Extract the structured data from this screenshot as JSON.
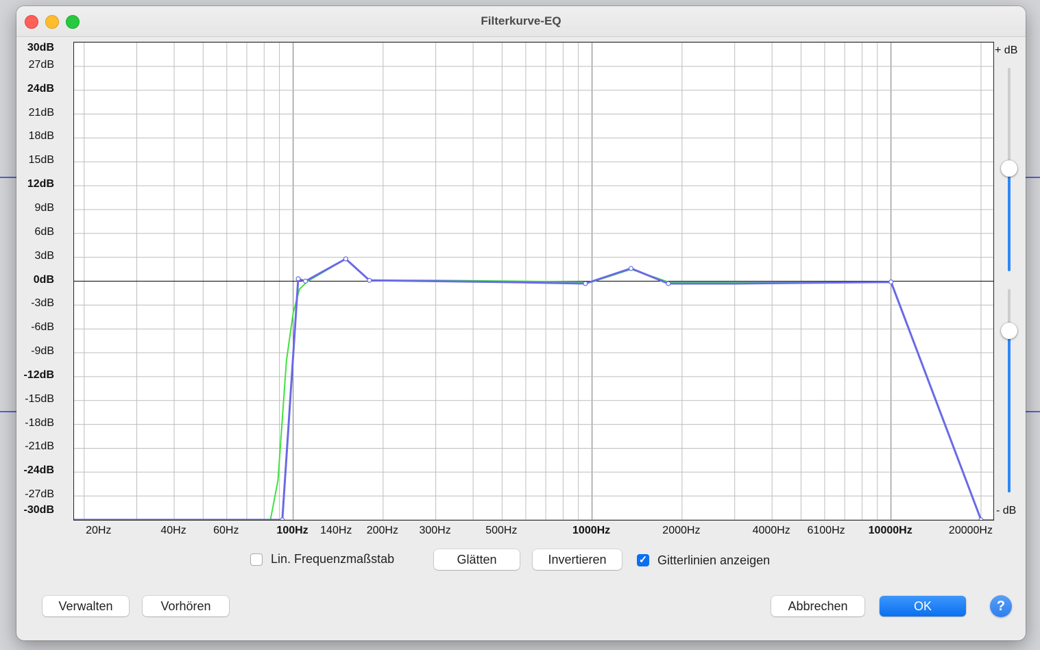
{
  "window": {
    "title": "Filterkurve-EQ"
  },
  "gain_scale": {
    "top_label": "+ dB",
    "bottom_label": "- dB"
  },
  "controls": {
    "linear_scale_label": "Lin. Frequenzmaßstab",
    "linear_scale_checked": false,
    "smooth_label": "Glätten",
    "invert_label": "Invertieren",
    "gridlines_label": "Gitterlinien anzeigen",
    "gridlines_checked": true
  },
  "footer": {
    "manage_label": "Verwalten",
    "preview_label": "Vorhören",
    "cancel_label": "Abbrechen",
    "ok_label": "OK",
    "help_label": "?"
  },
  "chart_data": {
    "type": "line",
    "x_scale": "log",
    "xlim": [
      18.5,
      22000
    ],
    "ylim": [
      -30,
      30
    ],
    "grid": true,
    "y_ticks": [
      {
        "value": 30,
        "label": "30dB",
        "bold": true
      },
      {
        "value": 27,
        "label": "27dB",
        "bold": false
      },
      {
        "value": 24,
        "label": "24dB",
        "bold": true
      },
      {
        "value": 21,
        "label": "21dB",
        "bold": false
      },
      {
        "value": 18,
        "label": "18dB",
        "bold": false
      },
      {
        "value": 15,
        "label": "15dB",
        "bold": false
      },
      {
        "value": 12,
        "label": "12dB",
        "bold": true
      },
      {
        "value": 9,
        "label": "9dB",
        "bold": false
      },
      {
        "value": 6,
        "label": "6dB",
        "bold": false
      },
      {
        "value": 3,
        "label": "3dB",
        "bold": false
      },
      {
        "value": 0,
        "label": "0dB",
        "bold": true
      },
      {
        "value": -3,
        "label": "-3dB",
        "bold": false
      },
      {
        "value": -6,
        "label": "-6dB",
        "bold": false
      },
      {
        "value": -9,
        "label": "-9dB",
        "bold": false
      },
      {
        "value": -12,
        "label": "-12dB",
        "bold": true
      },
      {
        "value": -15,
        "label": "-15dB",
        "bold": false
      },
      {
        "value": -18,
        "label": "-18dB",
        "bold": false
      },
      {
        "value": -21,
        "label": "-21dB",
        "bold": false
      },
      {
        "value": -24,
        "label": "-24dB",
        "bold": true
      },
      {
        "value": -27,
        "label": "-27dB",
        "bold": false
      },
      {
        "value": -30,
        "label": "-30dB",
        "bold": true
      }
    ],
    "x_ticks": [
      {
        "value": 20,
        "label": "20Hz",
        "bold": false
      },
      {
        "value": 40,
        "label": "40Hz",
        "bold": false
      },
      {
        "value": 60,
        "label": "60Hz",
        "bold": false
      },
      {
        "value": 100,
        "label": "100Hz",
        "bold": true
      },
      {
        "value": 140,
        "label": "140Hz",
        "bold": false
      },
      {
        "value": 200,
        "label": "200Hz",
        "bold": false
      },
      {
        "value": 300,
        "label": "300Hz",
        "bold": false
      },
      {
        "value": 500,
        "label": "500Hz",
        "bold": false
      },
      {
        "value": 1000,
        "label": "1000Hz",
        "bold": true
      },
      {
        "value": 2000,
        "label": "2000Hz",
        "bold": false
      },
      {
        "value": 4000,
        "label": "4000Hz",
        "bold": false
      },
      {
        "value": 6100,
        "label": "6100Hz",
        "bold": false
      },
      {
        "value": 10000,
        "label": "10000Hz",
        "bold": true
      },
      {
        "value": 20000,
        "label": "20000Hz",
        "bold": false
      }
    ],
    "series": [
      {
        "color": "#3fe23f",
        "points": [
          [
            18.5,
            -30
          ],
          [
            84,
            -30
          ],
          [
            89,
            -25
          ],
          [
            95,
            -10
          ],
          [
            100,
            -4
          ],
          [
            105,
            -1
          ],
          [
            112,
            0
          ],
          [
            150,
            2.8
          ],
          [
            180,
            0.1
          ],
          [
            300,
            0.1
          ],
          [
            1000,
            -0.1
          ],
          [
            1350,
            1.5
          ],
          [
            1800,
            -0.1
          ],
          [
            10000,
            -0.1
          ],
          [
            20000,
            -30
          ],
          [
            22000,
            -30
          ]
        ]
      },
      {
        "color": "#6a6ae6",
        "points": [
          [
            18.5,
            -30
          ],
          [
            92,
            -30
          ],
          [
            104,
            0.3
          ],
          [
            110,
            0
          ],
          [
            150,
            2.8
          ],
          [
            180,
            0.1
          ],
          [
            300,
            0
          ],
          [
            500,
            -0.1
          ],
          [
            950,
            -0.3
          ],
          [
            1350,
            1.6
          ],
          [
            1800,
            -0.3
          ],
          [
            3000,
            -0.3
          ],
          [
            10000,
            -0.1
          ],
          [
            20000,
            -30
          ]
        ]
      }
    ],
    "control_points": [
      [
        92,
        -30
      ],
      [
        104,
        0.3
      ],
      [
        110,
        0
      ],
      [
        150,
        2.8
      ],
      [
        180,
        0.1
      ],
      [
        950,
        -0.3
      ],
      [
        1350,
        1.6
      ],
      [
        1800,
        -0.3
      ],
      [
        10000,
        -0.1
      ],
      [
        20000,
        -30
      ]
    ]
  }
}
